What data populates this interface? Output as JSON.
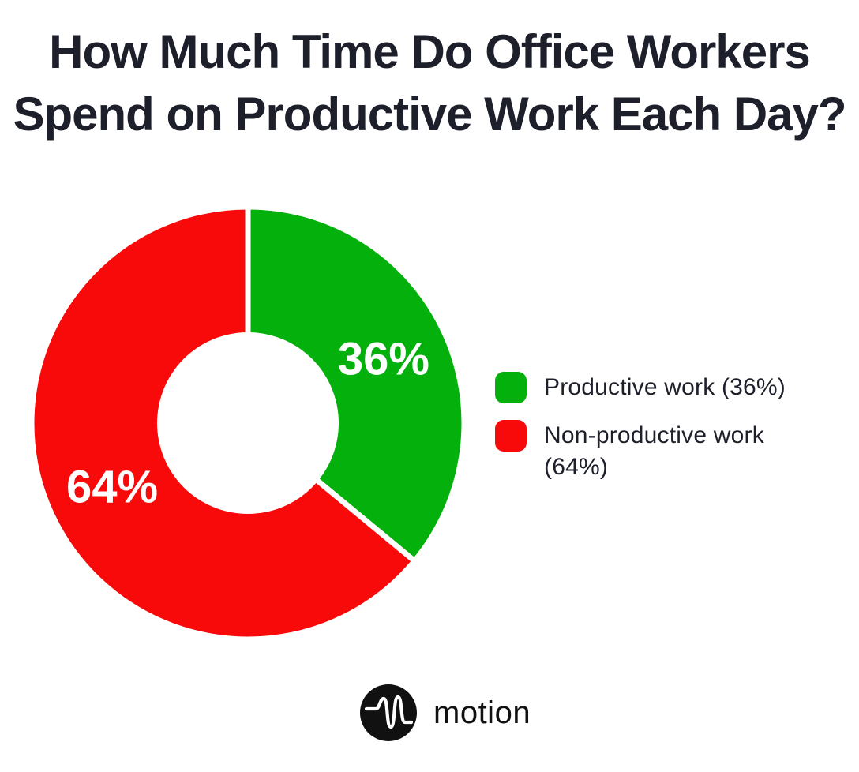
{
  "title": {
    "line1": "How Much Time Do Office Workers",
    "line2": "Spend on Productive Work Each Day?"
  },
  "chart_data": {
    "type": "pie",
    "title": "How Much Time Do Office Workers Spend on Productive Work Each Day?",
    "donut": true,
    "inner_radius_ratio": 0.42,
    "start_angle_deg": 0,
    "direction": "clockwise",
    "legend_position": "right",
    "slice_label_color": "#ffffff",
    "background": "#ffffff",
    "slices": [
      {
        "label": "Productive work",
        "value": 36,
        "display": "36%",
        "color": "#04b00c",
        "legend_label": "Productive work (36%)"
      },
      {
        "label": "Non-productive work",
        "value": 64,
        "display": "64%",
        "color": "#f80a0a",
        "legend_label": "Non-productive work (64%)"
      }
    ]
  },
  "footer": {
    "brand": "motion"
  },
  "colors": {
    "title_text": "#1d1f2b",
    "legend_text": "#1d1f2b",
    "logo_background": "#111111",
    "logo_glyph": "#ffffff",
    "brand_text": "#111111"
  }
}
